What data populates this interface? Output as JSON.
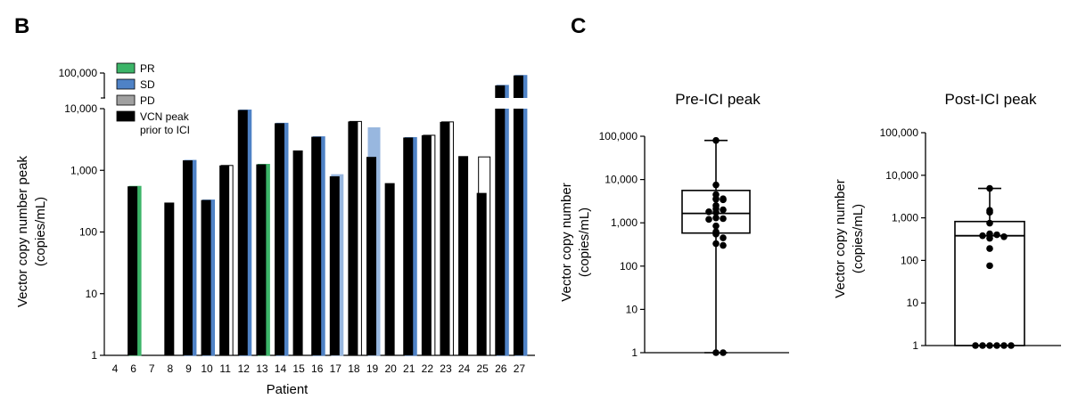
{
  "panels": {
    "left_letter": "B",
    "right_letter": "C"
  },
  "colors": {
    "PR": "#3cb468",
    "SD": "#4f82c6",
    "SD_light": "#98b7df",
    "PD": "#a0a0a0",
    "VCN": "#000000",
    "open": "#ffffff"
  },
  "chart_data": [
    {
      "type": "bar",
      "xlabel": "Patient",
      "ylabel": "Vector copy number peak",
      "ylabel_units": "(copies/mL)",
      "yscale": "log",
      "axis_break": "between 10,000 and 100,000",
      "ytick_labels": [
        "1",
        "10",
        "100",
        "1,000",
        "10,000",
        "100,000"
      ],
      "categories": [
        "4",
        "6",
        "7",
        "8",
        "9",
        "10",
        "11",
        "12",
        "13",
        "14",
        "15",
        "16",
        "17",
        "18",
        "19",
        "20",
        "21",
        "22",
        "23",
        "24",
        "25",
        "26",
        "27"
      ],
      "legend": {
        "position": "top-left",
        "entries": [
          {
            "key": "PR",
            "label": "PR"
          },
          {
            "key": "SD",
            "label": "SD"
          },
          {
            "key": "PD",
            "label": "PD"
          },
          {
            "key": "VCN",
            "label_lines": [
              "VCN peak",
              "prior to ICI"
            ]
          }
        ]
      },
      "bars": [
        {
          "patient": "4",
          "outcome": null,
          "post": null,
          "pre": null
        },
        {
          "patient": "6",
          "outcome": "PR",
          "post": 550,
          "pre": 550
        },
        {
          "patient": "7",
          "outcome": null,
          "post": null,
          "pre": null
        },
        {
          "patient": "8",
          "outcome": null,
          "post": null,
          "pre": 300
        },
        {
          "patient": "9",
          "outcome": "SD",
          "post": 1450,
          "pre": 1450
        },
        {
          "patient": "10",
          "outcome": "SD",
          "post": 330,
          "pre": 330
        },
        {
          "patient": "11",
          "outcome": "open",
          "post": 1200,
          "pre": 1200
        },
        {
          "patient": "12",
          "outcome": "SD",
          "post": 9500,
          "pre": 9500
        },
        {
          "patient": "13",
          "outcome": "PR",
          "post": 1250,
          "pre": 1250
        },
        {
          "patient": "14",
          "outcome": "SD",
          "post": 5800,
          "pre": 5800
        },
        {
          "patient": "15",
          "outcome": null,
          "post": null,
          "pre": 2100
        },
        {
          "patient": "16",
          "outcome": "SD",
          "post": 3500,
          "pre": 3500
        },
        {
          "patient": "17",
          "outcome": "SD",
          "post": 850,
          "pre": 800
        },
        {
          "patient": "18",
          "outcome": "open",
          "post": 6200,
          "pre": 6200
        },
        {
          "patient": "19",
          "outcome": "SD",
          "post": 4900,
          "pre": 1650
        },
        {
          "patient": "20",
          "outcome": null,
          "post": null,
          "pre": 620
        },
        {
          "patient": "21",
          "outcome": "SD",
          "post": 3400,
          "pre": 3400
        },
        {
          "patient": "22",
          "outcome": "open",
          "post": 3700,
          "pre": 3700
        },
        {
          "patient": "23",
          "outcome": "open",
          "post": 6100,
          "pre": 6100
        },
        {
          "patient": "24",
          "outcome": null,
          "post": null,
          "pre": 1700
        },
        {
          "patient": "25",
          "outcome": "open",
          "post": 1650,
          "pre": 430
        },
        {
          "patient": "26",
          "outcome": "SD",
          "post": 32000,
          "pre": 32000
        },
        {
          "patient": "27",
          "outcome": "SD",
          "post": 80000,
          "pre": 80000
        }
      ]
    },
    {
      "type": "box",
      "title": "Pre-ICI peak",
      "ylabel": "Vector copy number",
      "ylabel_units": "(copies/mL)",
      "yscale": "log",
      "ytick_labels": [
        "1",
        "10",
        "100",
        "1,000",
        "10,000",
        "100,000"
      ],
      "box": {
        "min": 1,
        "q1": 580,
        "median": 1650,
        "q3": 5600,
        "max": 80000
      },
      "points": [
        80000,
        7500,
        4500,
        3600,
        3500,
        3400,
        3600,
        2500,
        2100,
        2000,
        1800,
        1750,
        1300,
        1250,
        1200,
        850,
        620,
        550,
        450,
        330,
        300,
        1,
        1
      ]
    },
    {
      "type": "box",
      "title": "Post-ICI peak",
      "ylabel": "Vector copy number",
      "ylabel_units": "(copies/mL)",
      "yscale": "log",
      "ytick_labels": [
        "1",
        "10",
        "100",
        "1,000",
        "10,000",
        "100,000"
      ],
      "box": {
        "min": 1,
        "q1": 1,
        "median": 380,
        "q3": 820,
        "max": 4900
      },
      "points": [
        4900,
        1500,
        1350,
        750,
        420,
        400,
        380,
        360,
        330,
        190,
        75,
        1,
        1,
        1,
        1,
        1,
        1
      ]
    }
  ]
}
